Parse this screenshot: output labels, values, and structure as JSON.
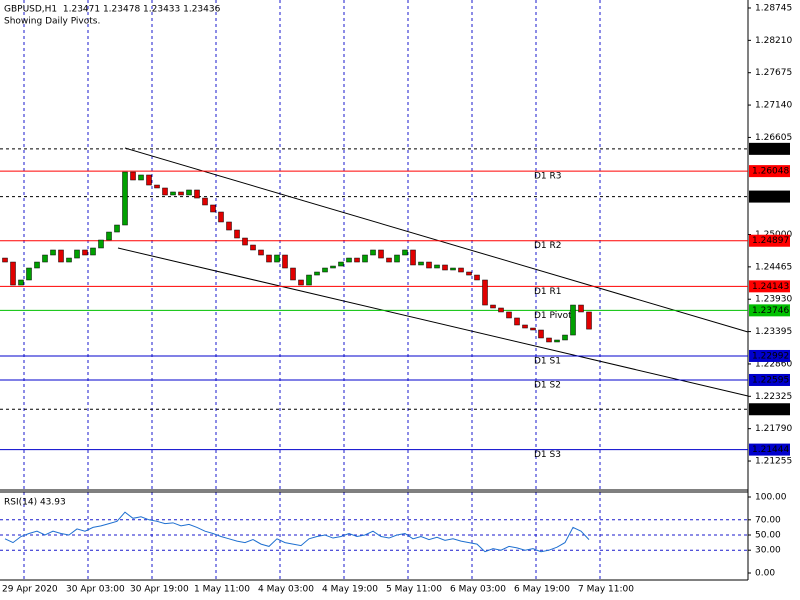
{
  "chart_data": [
    {
      "type": "candlestick",
      "title": "GBPUSD,H1  1.23471 1.23478 1.23433 1.23436",
      "subtitle": "Showing Daily Pivots.",
      "categories": [
        "29 Apr 2020",
        null,
        null,
        null,
        null,
        null,
        null,
        null,
        "30 Apr 03:00",
        null,
        null,
        null,
        null,
        null,
        null,
        null,
        "30 Apr 19:00",
        null,
        null,
        null,
        null,
        null,
        null,
        null,
        "1 May 11:00",
        null,
        null,
        null,
        null,
        null,
        null,
        null,
        "4 May 03:00",
        null,
        null,
        null,
        null,
        null,
        null,
        null,
        "4 May 19:00",
        null,
        null,
        null,
        null,
        null,
        null,
        null,
        "5 May 11:00",
        null,
        null,
        null,
        null,
        null,
        null,
        null,
        "6 May 03:00",
        null,
        null,
        null,
        null,
        null,
        null,
        null,
        "6 May 19:00",
        null,
        null,
        null,
        null,
        null,
        null,
        null,
        "7 May 11:00",
        null
      ],
      "open": 1.24611,
      "close": [
        1.24545,
        1.24165,
        1.24248,
        1.24446,
        1.24545,
        1.24661,
        1.24744,
        1.24545,
        1.24611,
        1.24744,
        1.24661,
        1.24777,
        1.24909,
        1.25041,
        1.25157,
        1.26033,
        1.25901,
        1.25984,
        1.25818,
        1.25769,
        1.25653,
        1.25703,
        1.25653,
        1.25736,
        1.25603,
        1.25488,
        1.25372,
        1.25207,
        1.25074,
        1.24942,
        1.24826,
        1.24744,
        1.24661,
        1.24545,
        1.24661,
        1.24446,
        1.24248,
        1.24165,
        1.2433,
        1.2438,
        1.24446,
        1.24479,
        1.24545,
        1.24611,
        1.24545,
        1.24661,
        1.24744,
        1.24611,
        1.24545,
        1.24661,
        1.24744,
        1.24496,
        1.24545,
        1.24446,
        1.24496,
        1.24413,
        1.24446,
        1.2438,
        1.2433,
        1.24248,
        1.23834,
        1.23785,
        1.23719,
        1.2362,
        1.23504,
        1.23454,
        1.23421,
        1.23289,
        1.23223,
        1.23256,
        1.23338,
        1.23834,
        1.23719,
        1.23436
      ],
      "up_color": "#00a000",
      "down_color": "#e00000",
      "ylim": [
        1.20776,
        1.28877
      ],
      "yticks": [
        1.28745,
        {
          "value": 1.2821,
          "label": "1.28210"
        },
        1.27675,
        {
          "value": 1.2714,
          "label": "1.27140"
        },
        1.26605,
        {
          "value": 1.25,
          "label": "1.25000"
        },
        1.24465,
        {
          "value": 1.2393,
          "label": "1.23930"
        },
        1.23395,
        {
          "value": 1.2286,
          "label": "1.22860"
        },
        1.22325,
        {
          "value": 1.2179,
          "label": "1.21790"
        },
        1.21255
      ],
      "levels": [
        {
          "value": 1.26416,
          "color": "#000000",
          "dashed": true
        },
        {
          "value": 1.26048,
          "color": "#ff0000",
          "name": "D1 R3"
        },
        {
          "value": 1.25627,
          "color": "#000000",
          "dashed": true
        },
        {
          "value": 1.24897,
          "color": "#ff0000",
          "name": "D1 R2"
        },
        {
          "value": 1.24143,
          "color": "#ff0000",
          "name": "D1 R1"
        },
        {
          "value": 1.23746,
          "color": "#00c000",
          "name": "D1 Pivot"
        },
        {
          "value": 1.22992,
          "color": "#0000cc",
          "name": "D1 S1"
        },
        {
          "value": 1.22595,
          "color": "#0000cc",
          "name": "D1 S2"
        },
        {
          "value": 1.22111,
          "color": "#000000",
          "dashed": true
        },
        {
          "value": 1.21444,
          "color": "#0000cc",
          "name": "D1 S3"
        }
      ]
    },
    {
      "type": "line",
      "title": "RSI(14) 43.93",
      "color": "#1e6fd0",
      "values": [
        45,
        40,
        48,
        52,
        55,
        50,
        55,
        52,
        50,
        58,
        55,
        60,
        62,
        65,
        68,
        80,
        72,
        74,
        70,
        68,
        65,
        66,
        62,
        64,
        60,
        55,
        52,
        48,
        45,
        42,
        40,
        44,
        38,
        35,
        45,
        40,
        38,
        36,
        45,
        48,
        50,
        46,
        48,
        52,
        48,
        50,
        55,
        48,
        46,
        50,
        52,
        45,
        48,
        44,
        47,
        43,
        45,
        42,
        40,
        38,
        28,
        32,
        30,
        35,
        33,
        30,
        32,
        28,
        30,
        34,
        40,
        60,
        55,
        43.93
      ],
      "ylim": [
        0,
        100
      ],
      "yticks": [
        {
          "value": 100,
          "label": "100.00"
        },
        {
          "value": 70,
          "label": "70.00"
        },
        {
          "value": 50,
          "label": "50.00"
        },
        {
          "value": 30,
          "label": "30.00"
        },
        {
          "value": 0,
          "label": "0.00"
        }
      ],
      "levels": [
        70,
        50,
        30
      ]
    }
  ]
}
